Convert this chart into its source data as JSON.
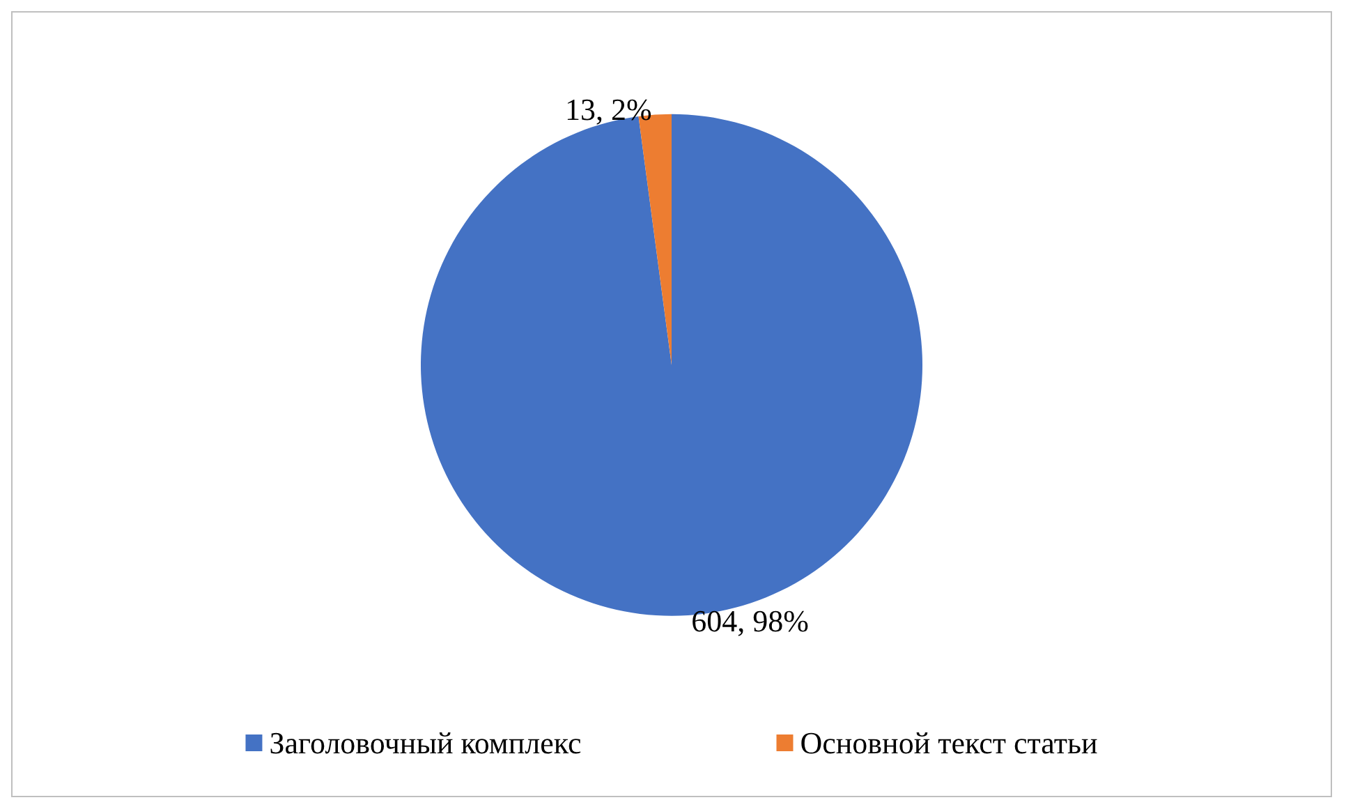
{
  "chart_data": {
    "type": "pie",
    "categories": [
      "Заголовочный комплекс",
      "Основной текст статьи"
    ],
    "values": [
      604,
      13
    ],
    "colors": [
      "#4472c4",
      "#ed7d31"
    ],
    "value_labels": [
      "604, 98%",
      "13, 2%"
    ],
    "legend": "bottom"
  }
}
